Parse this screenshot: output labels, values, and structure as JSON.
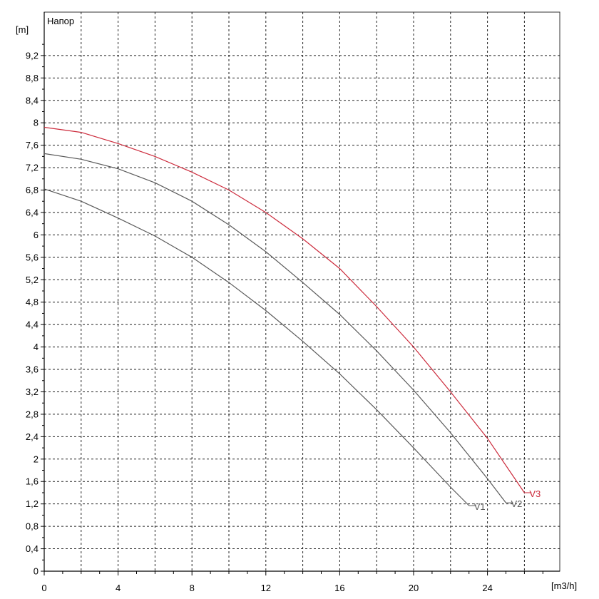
{
  "chart_data": {
    "type": "line",
    "title": "Напор",
    "xlabel": "[m3/h]",
    "ylabel": "[m]",
    "xlim": [
      0,
      27.5
    ],
    "ylim": [
      0,
      9.6
    ],
    "x_ticks": [
      "0",
      "4",
      "8",
      "12",
      "16",
      "20",
      "24"
    ],
    "y_ticks": [
      "0",
      "0,4",
      "0,8",
      "1,2",
      "1,6",
      "2",
      "2,4",
      "2,8",
      "3,2",
      "3,6",
      "4",
      "4,4",
      "4,8",
      "5,2",
      "5,6",
      "6",
      "6,4",
      "6,8",
      "7,2",
      "7,6",
      "8",
      "8,4",
      "8,8",
      "9,2"
    ],
    "grid": true,
    "series": [
      {
        "name": "V1",
        "color": "#5a5a5a",
        "x": [
          0,
          2,
          4,
          6,
          8,
          10,
          12,
          14,
          16,
          18,
          20,
          22,
          23
        ],
        "y": [
          6.82,
          6.6,
          6.3,
          5.98,
          5.6,
          5.15,
          4.65,
          4.1,
          3.52,
          2.88,
          2.2,
          1.5,
          1.17
        ]
      },
      {
        "name": "V2",
        "color": "#5a5a5a",
        "x": [
          0,
          2,
          4,
          6,
          8,
          10,
          12,
          14,
          16,
          18,
          20,
          22,
          24,
          25
        ],
        "y": [
          7.45,
          7.35,
          7.18,
          6.93,
          6.6,
          6.18,
          5.7,
          5.15,
          4.58,
          3.93,
          3.23,
          2.47,
          1.65,
          1.22
        ]
      },
      {
        "name": "V3",
        "color": "#cc2b3c",
        "x": [
          0,
          2,
          4,
          6,
          8,
          10,
          12,
          14,
          16,
          18,
          20,
          22,
          24,
          26
        ],
        "y": [
          7.92,
          7.83,
          7.63,
          7.4,
          7.12,
          6.8,
          6.4,
          5.93,
          5.4,
          4.72,
          4.0,
          3.2,
          2.37,
          1.4
        ]
      }
    ]
  }
}
